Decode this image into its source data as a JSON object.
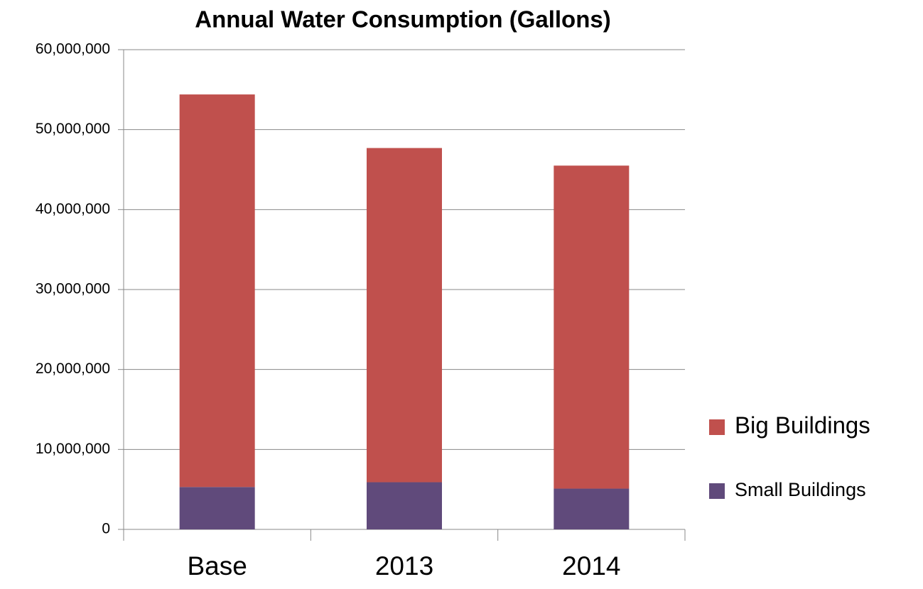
{
  "chart_data": {
    "type": "stacked_bar",
    "title": "Annual Water Consumption (Gallons)",
    "categories": [
      "Base",
      "2013",
      "2014"
    ],
    "series": [
      {
        "name": "Small Buildings",
        "color": "#604a7b",
        "values": [
          5300000,
          5900000,
          5100000
        ]
      },
      {
        "name": "Big Buildings",
        "color": "#c0504d",
        "values": [
          49100000,
          41800000,
          40400000
        ]
      }
    ],
    "ylim": [
      0,
      60000000
    ],
    "yticks": [
      0,
      {
        "value": 10000000,
        "label": "10,000,000"
      },
      {
        "value": 20000000,
        "label": "20,000,000"
      },
      {
        "value": 30000000,
        "label": "30,000,000"
      },
      {
        "value": 40000000,
        "label": "40,000,000"
      },
      {
        "value": 50000000,
        "label": "50,000,000"
      },
      {
        "value": 60000000,
        "label": "60,000,000"
      }
    ],
    "grid": true,
    "legend": "right"
  }
}
